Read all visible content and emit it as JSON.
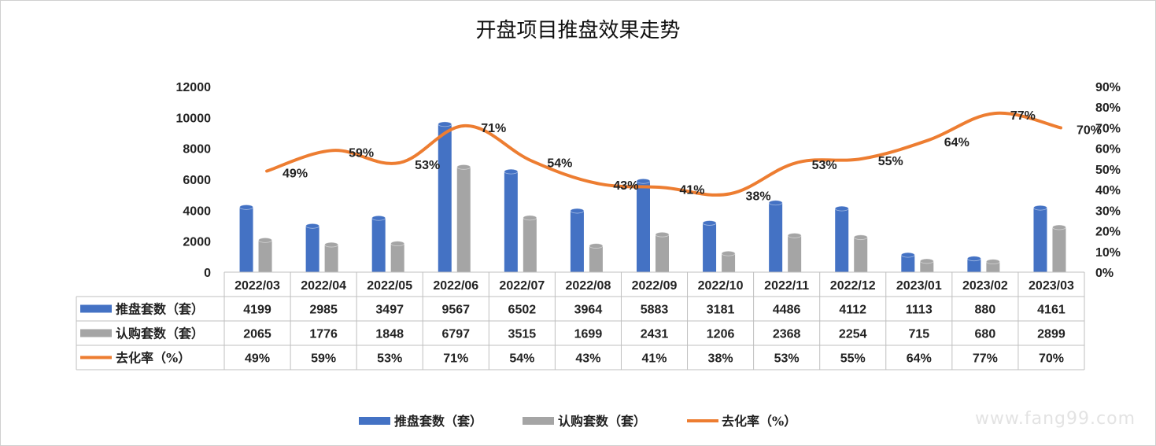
{
  "title": "开盘项目推盘效果走势",
  "watermark": "www.fang99.com",
  "colors": {
    "supply": "#4472C4",
    "subscribe": "#A5A5A5",
    "rate": "#ED7D31"
  },
  "chart_data": {
    "type": "bar",
    "categories": [
      "2022/03",
      "2022/04",
      "2022/05",
      "2022/06",
      "2022/07",
      "2022/08",
      "2022/09",
      "2022/10",
      "2022/11",
      "2022/12",
      "2023/01",
      "2023/02",
      "2023/03"
    ],
    "series": [
      {
        "name": "推盘套数（套）",
        "type": "bar",
        "axis": "left",
        "values": [
          4199,
          2985,
          3497,
          9567,
          6502,
          3964,
          5883,
          3181,
          4486,
          4112,
          1113,
          880,
          4161
        ]
      },
      {
        "name": "认购套数（套）",
        "type": "bar",
        "axis": "left",
        "values": [
          2065,
          1776,
          1848,
          6797,
          3515,
          1699,
          2431,
          1206,
          2368,
          2254,
          715,
          680,
          2899
        ]
      },
      {
        "name": "去化率（%）",
        "type": "line",
        "axis": "right",
        "values": [
          49,
          59,
          53,
          71,
          54,
          43,
          41,
          38,
          53,
          55,
          64,
          77,
          70
        ]
      }
    ],
    "ylim": [
      0,
      12000
    ],
    "y_ticks": [
      0,
      2000,
      4000,
      6000,
      8000,
      10000,
      12000
    ],
    "y2lim": [
      0,
      90
    ],
    "y2_ticks": [
      "0%",
      "10%",
      "20%",
      "30%",
      "40%",
      "50%",
      "60%",
      "70%",
      "80%",
      "90%"
    ],
    "rate_labels": [
      "49%",
      "59%",
      "53%",
      "71%",
      "54%",
      "43%",
      "41%",
      "38%",
      "53%",
      "55%",
      "64%",
      "77%",
      "70%"
    ],
    "legend_position": "bottom",
    "data_table": true
  }
}
